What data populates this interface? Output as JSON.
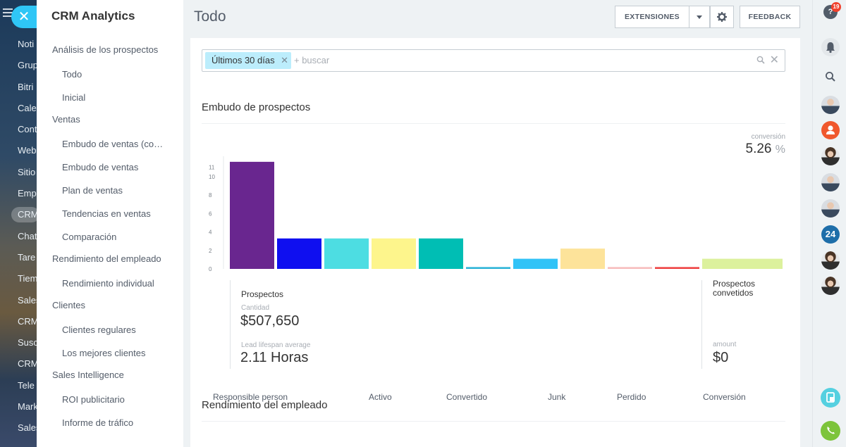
{
  "background_nav": {
    "items": [
      "Noti",
      "Grup",
      "Bitri",
      "Cale",
      "Cont",
      "Web",
      "Sitio",
      "Emp",
      "CRM",
      "Chat",
      "Tare",
      "Tiem",
      "Sales",
      "CRM",
      "Susc",
      "CRM",
      "Tele",
      "Mark",
      "Sales"
    ],
    "active_index": 8
  },
  "sidebar": {
    "title": "CRM Analytics",
    "menu": [
      {
        "type": "group",
        "label": "Análisis de los prospectos"
      },
      {
        "type": "sub",
        "label": "Todo"
      },
      {
        "type": "sub",
        "label": "Inicial"
      },
      {
        "type": "group",
        "label": "Ventas"
      },
      {
        "type": "sub",
        "label": "Embudo de ventas (compras repetidas)"
      },
      {
        "type": "sub",
        "label": "Embudo de ventas"
      },
      {
        "type": "sub",
        "label": "Plan de ventas"
      },
      {
        "type": "sub",
        "label": "Tendencias en ventas"
      },
      {
        "type": "sub",
        "label": "Comparación"
      },
      {
        "type": "group",
        "label": "Rendimiento del empleado"
      },
      {
        "type": "sub",
        "label": "Rendimiento individual"
      },
      {
        "type": "group",
        "label": "Clientes"
      },
      {
        "type": "sub",
        "label": "Clientes regulares"
      },
      {
        "type": "sub",
        "label": "Los mejores clientes"
      },
      {
        "type": "group",
        "label": "Sales Intelligence"
      },
      {
        "type": "sub",
        "label": "ROI publicitario"
      },
      {
        "type": "sub",
        "label": "Informe de tráfico"
      }
    ]
  },
  "header": {
    "title": "Todo",
    "extensions_label": "EXTENSIONES",
    "feedback_label": "FEEDBACK"
  },
  "filter": {
    "chip_label": "Últimos 30 días",
    "placeholder": "+ buscar"
  },
  "funnel": {
    "title": "Embudo de prospectos",
    "conversion_label": "conversión",
    "conversion_value": "5.26",
    "conversion_unit": "%"
  },
  "stats": {
    "prospects_heading": "Prospectos",
    "quantity_label": "Cantidad",
    "quantity_value": "$507,650",
    "lifespan_label": "Lead lifespan average",
    "lifespan_value": "2.11 Horas",
    "converted_heading": "Prospectos convetidos",
    "amount_label": "amount",
    "amount_value": "$0"
  },
  "performance": {
    "title": "Rendimiento del empleado",
    "columns": [
      "Responsible person",
      "Activo",
      "Convertido",
      "Junk",
      "Perdido",
      "Conversión"
    ]
  },
  "right_bar": {
    "help_badge": "19",
    "chat_24_label": "24"
  },
  "chart_data": {
    "type": "bar",
    "yticks": [
      0,
      2,
      4,
      6,
      8,
      10,
      11
    ],
    "ylim": [
      0,
      12.2
    ],
    "values": [
      11.6,
      3.3,
      3.3,
      3.3,
      3.3,
      0.2,
      1.1,
      2.2,
      0.2,
      0.2,
      1.1
    ],
    "colors": [
      "#69268f",
      "#0f0ff0",
      "#4ddde2",
      "#fdf58c",
      "#00beb4",
      "#2fb5d8",
      "#31c3f7",
      "#fde39a",
      "#f7bdbd",
      "#ef4444",
      "#dcf19d"
    ]
  }
}
